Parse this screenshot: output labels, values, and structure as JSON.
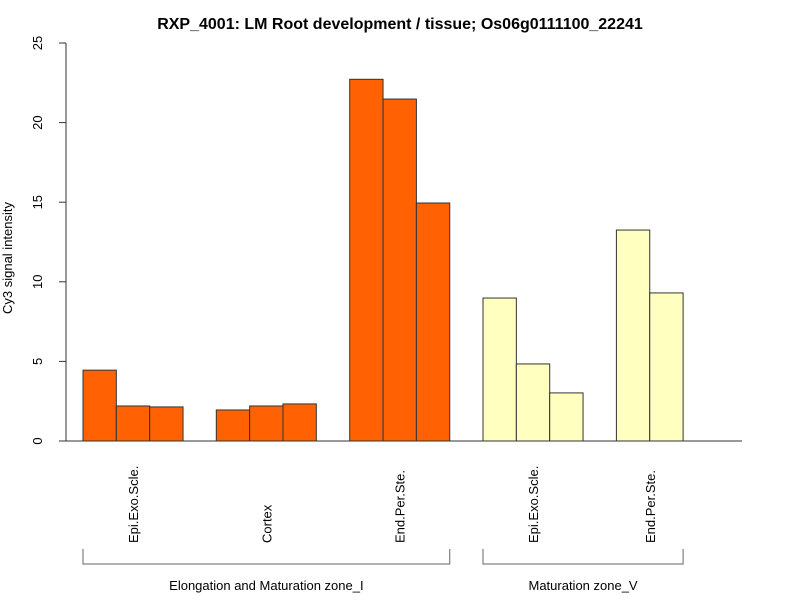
{
  "chart_data": {
    "type": "bar",
    "title": "RXP_4001: LM Root development / tissue; Os06g0111100_22241",
    "xlabel": "",
    "ylabel": "Cy3 signal intensity",
    "ylim": [
      0,
      25
    ],
    "yticks": [
      "0",
      "5",
      "10",
      "15",
      "20",
      "25"
    ],
    "grid": false,
    "colors": {
      "zone_I": "#FF6103",
      "zone_V": "#FFFFC0",
      "stroke": "#333333"
    },
    "groups": [
      {
        "label": "Epi.Exo.Scle.",
        "zone": "zone_I",
        "values": [
          4.45,
          2.2,
          2.14
        ]
      },
      {
        "label": "Cortex",
        "zone": "zone_I",
        "values": [
          1.95,
          2.2,
          2.33
        ]
      },
      {
        "label": "End.Per.Ste.",
        "zone": "zone_I",
        "values": [
          22.72,
          21.48,
          14.95
        ]
      },
      {
        "label": "Epi.Exo.Scle.",
        "zone": "zone_V",
        "values": [
          8.98,
          4.84,
          3.02
        ]
      },
      {
        "label": "End.Per.Ste.",
        "zone": "zone_V",
        "values": [
          13.25,
          9.3
        ]
      }
    ],
    "zones": [
      {
        "id": "zone_I",
        "label": "Elongation and Maturation zone_I"
      },
      {
        "id": "zone_V",
        "label": "Maturation zone_V"
      }
    ]
  }
}
